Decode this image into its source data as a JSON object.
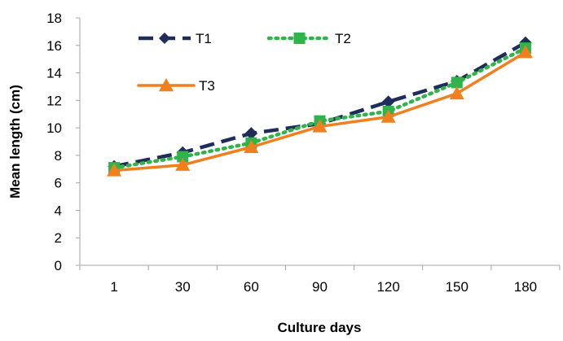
{
  "chart_data": {
    "type": "line",
    "categories": [
      "1",
      "30",
      "60",
      "90",
      "120",
      "150",
      "180"
    ],
    "xlabel": "Culture days",
    "ylabel": "Mean length (cm)",
    "ylim": [
      0,
      18
    ],
    "yticks": [
      0,
      2,
      4,
      6,
      8,
      10,
      12,
      14,
      16,
      18
    ],
    "grid": false,
    "legend_position": "top-left",
    "series": [
      {
        "name": "T1",
        "values": [
          7.2,
          8.2,
          9.6,
          10.3,
          11.9,
          13.4,
          16.2
        ],
        "color": "#1f2d5a",
        "line": "dashed",
        "marker": "diamond"
      },
      {
        "name": "T2",
        "values": [
          7.1,
          7.9,
          8.9,
          10.5,
          11.2,
          13.3,
          15.8
        ],
        "color": "#2fb34a",
        "line": "dotted",
        "marker": "square"
      },
      {
        "name": "T3",
        "values": [
          6.9,
          7.3,
          8.6,
          10.1,
          10.8,
          12.5,
          15.5
        ],
        "color": "#f07f1e",
        "line": "solid",
        "marker": "triangle"
      }
    ]
  }
}
